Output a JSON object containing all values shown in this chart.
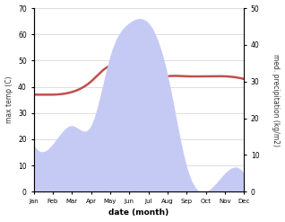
{
  "months": [
    "Jan",
    "Feb",
    "Mar",
    "Apr",
    "May",
    "Jun",
    "Jul",
    "Aug",
    "Sep",
    "Oct",
    "Nov",
    "Dec"
  ],
  "temperature": [
    37,
    37,
    38,
    42,
    48,
    46,
    43,
    44,
    44,
    44,
    44,
    43
  ],
  "precipitation": [
    13,
    13,
    18,
    18,
    37,
    46,
    46,
    32,
    7,
    0,
    5,
    5
  ],
  "temp_color": "#c0504d",
  "precip_fill_color": "#c5caf5",
  "left_ylim": [
    0,
    70
  ],
  "right_ylim": [
    0,
    50
  ],
  "left_yticks": [
    0,
    10,
    20,
    30,
    40,
    50,
    60,
    70
  ],
  "right_yticks": [
    0,
    10,
    20,
    30,
    40,
    50
  ],
  "left_ylabel": "max temp (C)",
  "right_ylabel": "med. precipitation (kg/m2)",
  "xlabel": "date (month)",
  "bg_color": "#ffffff",
  "grid_color": "#d0d0d0"
}
